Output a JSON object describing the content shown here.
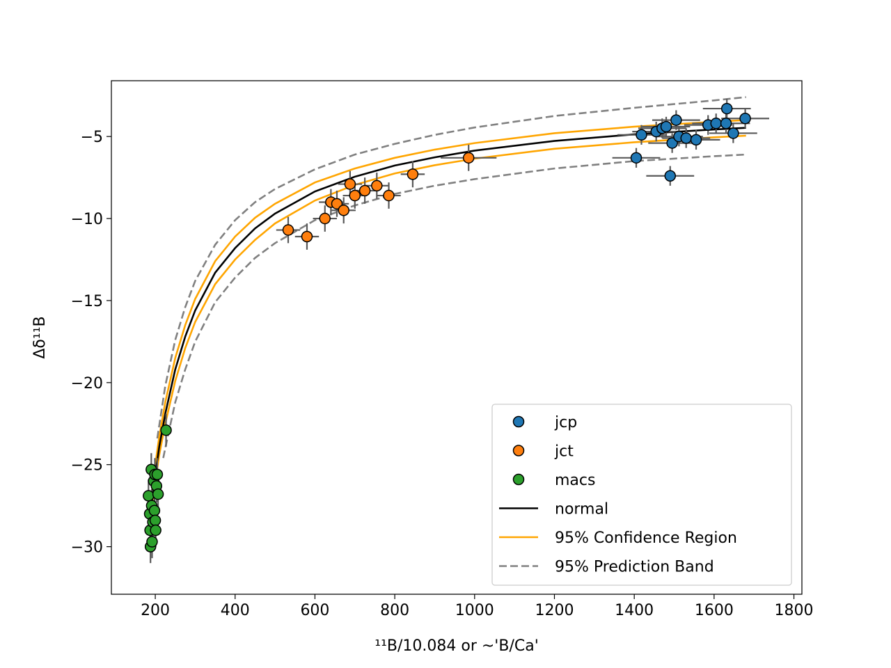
{
  "chart_data": {
    "type": "scatter",
    "title": "",
    "xlabel": "¹¹B/10.084 or ~'B/Ca'",
    "ylabel": "Δδ¹¹B",
    "xlim": [
      90,
      1820
    ],
    "ylim": [
      -32.9,
      -1.6
    ],
    "xticks": [
      200,
      400,
      600,
      800,
      1000,
      1200,
      1400,
      1600,
      1800
    ],
    "yticks": [
      -30,
      -25,
      -20,
      -15,
      -10,
      -5
    ],
    "ytick_labels": [
      "−30",
      "−25",
      "−20",
      "−15",
      "−10",
      "−5"
    ],
    "grid": false,
    "legend_position": "lower-right",
    "colors": {
      "jcp": "#1f77b4",
      "jct": "#ff7f0e",
      "macs": "#2ca02c",
      "normal": "#000000",
      "confidence": "#ffa500",
      "prediction": "#808080",
      "errorbar": "#595959"
    },
    "series": [
      {
        "name": "jcp",
        "kind": "scatter",
        "points": [
          {
            "x": 1405,
            "y": -6.3,
            "xerr": 60,
            "yerr": 0.6
          },
          {
            "x": 1418,
            "y": -4.9,
            "xerr": 60,
            "yerr": 0.6
          },
          {
            "x": 1455,
            "y": -4.7,
            "xerr": 60,
            "yerr": 0.6
          },
          {
            "x": 1470,
            "y": -4.5,
            "xerr": 60,
            "yerr": 0.6
          },
          {
            "x": 1480,
            "y": -4.4,
            "xerr": 60,
            "yerr": 0.6
          },
          {
            "x": 1490,
            "y": -7.4,
            "xerr": 60,
            "yerr": 0.6
          },
          {
            "x": 1495,
            "y": -5.4,
            "xerr": 60,
            "yerr": 0.6
          },
          {
            "x": 1505,
            "y": -4.0,
            "xerr": 60,
            "yerr": 0.6
          },
          {
            "x": 1512,
            "y": -5.0,
            "xerr": 60,
            "yerr": 0.6
          },
          {
            "x": 1530,
            "y": -5.1,
            "xerr": 60,
            "yerr": 0.6
          },
          {
            "x": 1555,
            "y": -5.2,
            "xerr": 60,
            "yerr": 0.6
          },
          {
            "x": 1585,
            "y": -4.3,
            "xerr": 60,
            "yerr": 0.6
          },
          {
            "x": 1605,
            "y": -4.2,
            "xerr": 60,
            "yerr": 0.6
          },
          {
            "x": 1630,
            "y": -4.2,
            "xerr": 60,
            "yerr": 0.6
          },
          {
            "x": 1632,
            "y": -3.3,
            "xerr": 60,
            "yerr": 0.6
          },
          {
            "x": 1648,
            "y": -4.8,
            "xerr": 60,
            "yerr": 0.6
          },
          {
            "x": 1678,
            "y": -3.9,
            "xerr": 60,
            "yerr": 0.6
          }
        ]
      },
      {
        "name": "jct",
        "kind": "scatter",
        "points": [
          {
            "x": 533,
            "y": -10.7,
            "xerr": 30,
            "yerr": 0.8
          },
          {
            "x": 580,
            "y": -11.1,
            "xerr": 30,
            "yerr": 0.8
          },
          {
            "x": 625,
            "y": -10.0,
            "xerr": 30,
            "yerr": 0.8
          },
          {
            "x": 640,
            "y": -9.0,
            "xerr": 30,
            "yerr": 0.8
          },
          {
            "x": 655,
            "y": -9.1,
            "xerr": 30,
            "yerr": 0.8
          },
          {
            "x": 672,
            "y": -9.5,
            "xerr": 30,
            "yerr": 0.8
          },
          {
            "x": 688,
            "y": -7.9,
            "xerr": 30,
            "yerr": 0.8
          },
          {
            "x": 700,
            "y": -8.6,
            "xerr": 30,
            "yerr": 0.8
          },
          {
            "x": 725,
            "y": -8.3,
            "xerr": 30,
            "yerr": 0.8
          },
          {
            "x": 755,
            "y": -8.0,
            "xerr": 30,
            "yerr": 0.8
          },
          {
            "x": 785,
            "y": -8.6,
            "xerr": 30,
            "yerr": 0.8
          },
          {
            "x": 845,
            "y": -7.3,
            "xerr": 30,
            "yerr": 0.8
          },
          {
            "x": 985,
            "y": -6.3,
            "xerr": 70,
            "yerr": 0.8
          }
        ]
      },
      {
        "name": "macs",
        "kind": "scatter",
        "points": [
          {
            "x": 183,
            "y": -26.9,
            "xerr": 6,
            "yerr": 1.0
          },
          {
            "x": 186,
            "y": -28.0,
            "xerr": 6,
            "yerr": 1.0
          },
          {
            "x": 187,
            "y": -29.0,
            "xerr": 6,
            "yerr": 1.0
          },
          {
            "x": 188,
            "y": -30.0,
            "xerr": 6,
            "yerr": 1.0
          },
          {
            "x": 190,
            "y": -25.3,
            "xerr": 6,
            "yerr": 1.0
          },
          {
            "x": 191,
            "y": -27.5,
            "xerr": 6,
            "yerr": 1.0
          },
          {
            "x": 192,
            "y": -29.7,
            "xerr": 6,
            "yerr": 1.0
          },
          {
            "x": 194,
            "y": -28.5,
            "xerr": 6,
            "yerr": 1.0
          },
          {
            "x": 196,
            "y": -26.0,
            "xerr": 6,
            "yerr": 1.0
          },
          {
            "x": 198,
            "y": -27.8,
            "xerr": 6,
            "yerr": 1.0
          },
          {
            "x": 199,
            "y": -25.6,
            "xerr": 6,
            "yerr": 1.0
          },
          {
            "x": 200,
            "y": -28.4,
            "xerr": 6,
            "yerr": 1.0
          },
          {
            "x": 201,
            "y": -29.0,
            "xerr": 6,
            "yerr": 1.0
          },
          {
            "x": 203,
            "y": -26.3,
            "xerr": 6,
            "yerr": 1.0
          },
          {
            "x": 205,
            "y": -25.6,
            "xerr": 6,
            "yerr": 1.0
          },
          {
            "x": 207,
            "y": -26.8,
            "xerr": 6,
            "yerr": 1.0
          },
          {
            "x": 227,
            "y": -22.9,
            "xerr": 8,
            "yerr": 1.0
          }
        ]
      },
      {
        "name": "normal",
        "kind": "line",
        "style": "solid",
        "x": [
          183,
          190,
          200,
          210,
          225,
          250,
          275,
          300,
          350,
          400,
          450,
          500,
          600,
          700,
          800,
          900,
          1000,
          1200,
          1400,
          1600,
          1680
        ],
        "y": [
          -28.9,
          -27.5,
          -25.6,
          -23.9,
          -21.9,
          -19.2,
          -17.2,
          -15.6,
          -13.3,
          -11.8,
          -10.6,
          -9.7,
          -8.35,
          -7.45,
          -6.77,
          -6.27,
          -5.86,
          -5.27,
          -4.87,
          -4.57,
          -4.47
        ]
      },
      {
        "name": "95% Confidence Region",
        "kind": "line",
        "style": "solid",
        "bands": [
          {
            "x": [
              183,
              190,
              200,
              210,
              225,
              250,
              275,
              300,
              350,
              400,
              450,
              500,
              600,
              700,
              800,
              900,
              1000,
              1200,
              1400,
              1600,
              1680
            ],
            "y": [
              -28.6,
              -27.1,
              -25.0,
              -23.3,
              -21.2,
              -18.5,
              -16.5,
              -14.9,
              -12.6,
              -11.1,
              -9.95,
              -9.1,
              -7.8,
              -6.95,
              -6.3,
              -5.8,
              -5.4,
              -4.8,
              -4.4,
              -4.1,
              -4.0
            ]
          },
          {
            "x": [
              183,
              190,
              200,
              210,
              225,
              250,
              275,
              300,
              350,
              400,
              450,
              500,
              600,
              700,
              800,
              900,
              1000,
              1200,
              1400,
              1600,
              1680
            ],
            "y": [
              -29.1,
              -27.8,
              -26.0,
              -24.4,
              -22.5,
              -19.9,
              -17.9,
              -16.3,
              -14.0,
              -12.5,
              -11.3,
              -10.3,
              -8.9,
              -7.95,
              -7.25,
              -6.75,
              -6.35,
              -5.75,
              -5.35,
              -5.05,
              -4.95
            ]
          }
        ]
      },
      {
        "name": "95% Prediction Band",
        "kind": "line",
        "style": "dashed",
        "bands": [
          {
            "x": [
              205,
              215,
              225,
              250,
              275,
              300,
              350,
              400,
              450,
              500,
              600,
              700,
              800,
              900,
              1000,
              1200,
              1400,
              1600,
              1680
            ],
            "y": [
              -23.4,
              -21.8,
              -20.2,
              -17.4,
              -15.4,
              -13.8,
              -11.6,
              -10.1,
              -9.0,
              -8.2,
              -7.0,
              -6.1,
              -5.45,
              -4.9,
              -4.45,
              -3.75,
              -3.25,
              -2.8,
              -2.6
            ]
          },
          {
            "x": [
              220,
              225,
              250,
              275,
              300,
              350,
              400,
              450,
              500,
              600,
              700,
              800,
              900,
              1000,
              1200,
              1400,
              1600,
              1680
            ],
            "y": [
              -24.6,
              -24.0,
              -21.2,
              -19.2,
              -17.5,
              -15.1,
              -13.6,
              -12.4,
              -11.5,
              -10.1,
              -9.2,
              -8.5,
              -8.0,
              -7.6,
              -6.95,
              -6.5,
              -6.2,
              -6.1
            ]
          }
        ]
      }
    ],
    "legend": [
      {
        "label": "jcp",
        "marker": "circle",
        "color": "#1f77b4"
      },
      {
        "label": "jct",
        "marker": "circle",
        "color": "#ff7f0e"
      },
      {
        "label": "macs",
        "marker": "circle",
        "color": "#2ca02c"
      },
      {
        "label": "normal",
        "marker": "line",
        "color": "#000000",
        "dash": false
      },
      {
        "label": "95% Confidence Region",
        "marker": "line",
        "color": "#ffa500",
        "dash": false
      },
      {
        "label": "95% Prediction Band",
        "marker": "line",
        "color": "#808080",
        "dash": true
      }
    ]
  }
}
